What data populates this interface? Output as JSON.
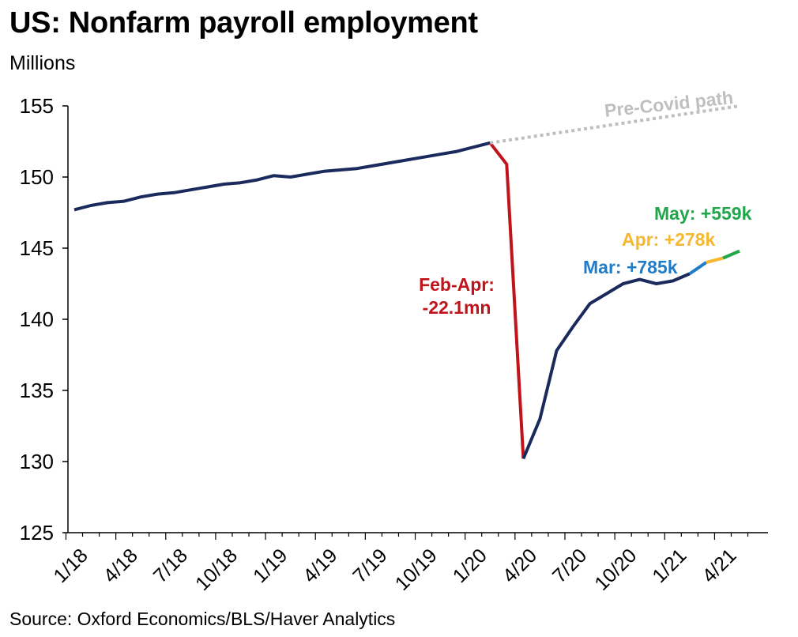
{
  "title": "US: Nonfarm payroll employment",
  "units_label": "Millions",
  "source": "Source: Oxford Economics/BLS/Haver Analytics",
  "colors": {
    "main_line": "#1b2a5c",
    "feb_apr": "#c0141c",
    "mar": "#1f7cc8",
    "apr": "#f5b82e",
    "may": "#22a64b",
    "pre_covid": "#bfbfbf"
  },
  "chart_data": {
    "type": "line",
    "title": "US: Nonfarm payroll employment",
    "ylabel": "Millions",
    "ylim": [
      125,
      155
    ],
    "yticks": [
      125,
      130,
      135,
      140,
      145,
      150,
      155
    ],
    "xtick_labels": [
      "1/18",
      "4/18",
      "7/18",
      "10/18",
      "1/19",
      "4/19",
      "7/19",
      "10/19",
      "1/20",
      "4/20",
      "7/20",
      "10/20",
      "1/21",
      "4/21"
    ],
    "x_range": [
      "2018-01",
      "2021-05"
    ],
    "grid": false,
    "series": [
      {
        "key": "main",
        "color_key": "main_line",
        "points": [
          [
            "2018-01",
            147.7
          ],
          [
            "2018-02",
            148.0
          ],
          [
            "2018-03",
            148.2
          ],
          [
            "2018-04",
            148.3
          ],
          [
            "2018-05",
            148.6
          ],
          [
            "2018-06",
            148.8
          ],
          [
            "2018-07",
            148.9
          ],
          [
            "2018-08",
            149.1
          ],
          [
            "2018-09",
            149.3
          ],
          [
            "2018-10",
            149.5
          ],
          [
            "2018-11",
            149.6
          ],
          [
            "2018-12",
            149.8
          ],
          [
            "2019-01",
            150.1
          ],
          [
            "2019-02",
            150.0
          ],
          [
            "2019-03",
            150.2
          ],
          [
            "2019-04",
            150.4
          ],
          [
            "2019-05",
            150.5
          ],
          [
            "2019-06",
            150.6
          ],
          [
            "2019-07",
            150.8
          ],
          [
            "2019-08",
            151.0
          ],
          [
            "2019-09",
            151.2
          ],
          [
            "2019-10",
            151.4
          ],
          [
            "2019-11",
            151.6
          ],
          [
            "2019-12",
            151.8
          ],
          [
            "2020-01",
            152.1
          ],
          [
            "2020-02",
            152.4
          ]
        ]
      },
      {
        "key": "drop",
        "color_key": "feb_apr",
        "points": [
          [
            "2020-02",
            152.4
          ],
          [
            "2020-03",
            150.9
          ],
          [
            "2020-04",
            130.2
          ]
        ]
      },
      {
        "key": "recovery",
        "color_key": "main_line",
        "points": [
          [
            "2020-04",
            130.2
          ],
          [
            "2020-05",
            133.0
          ],
          [
            "2020-06",
            137.8
          ],
          [
            "2020-07",
            139.5
          ],
          [
            "2020-08",
            141.1
          ],
          [
            "2020-09",
            141.8
          ],
          [
            "2020-10",
            142.5
          ],
          [
            "2020-11",
            142.8
          ],
          [
            "2020-12",
            142.5
          ],
          [
            "2021-01",
            142.7
          ],
          [
            "2021-02",
            143.2
          ]
        ]
      },
      {
        "key": "mar",
        "color_key": "mar",
        "points": [
          [
            "2021-02",
            143.2
          ],
          [
            "2021-03",
            144.0
          ]
        ]
      },
      {
        "key": "apr",
        "color_key": "apr",
        "points": [
          [
            "2021-03",
            144.0
          ],
          [
            "2021-04",
            144.3
          ]
        ]
      },
      {
        "key": "may",
        "color_key": "may",
        "points": [
          [
            "2021-04",
            144.3
          ],
          [
            "2021-05",
            144.8
          ]
        ]
      },
      {
        "key": "pre_covid",
        "color_key": "pre_covid",
        "dashed": true,
        "points": [
          [
            "2020-02",
            152.4
          ],
          [
            "2021-05",
            155.0
          ]
        ]
      }
    ],
    "annotations": [
      {
        "text": "Pre-Covid path",
        "color_key": "pre_covid"
      },
      {
        "lines": [
          "Feb-Apr:",
          "-22.1mn"
        ],
        "color_key": "feb_apr"
      },
      {
        "text": "Mar: +785k",
        "color_key": "mar"
      },
      {
        "text": "Apr: +278k",
        "color_key": "apr"
      },
      {
        "text": "May: +559k",
        "color_key": "may"
      }
    ]
  }
}
